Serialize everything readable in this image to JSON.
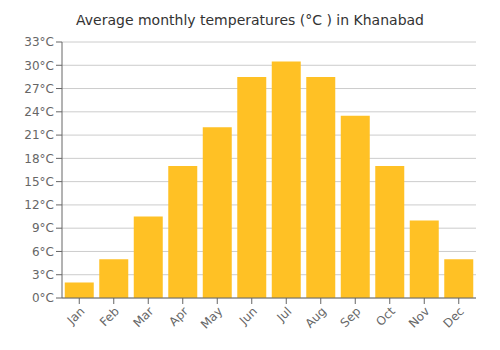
{
  "chart_data": {
    "type": "bar",
    "title": "Average monthly temperatures (°C ) in Khanabad",
    "categories": [
      "Jan",
      "Feb",
      "Mar",
      "Apr",
      "May",
      "Jun",
      "Jul",
      "Aug",
      "Sep",
      "Oct",
      "Nov",
      "Dec"
    ],
    "values": [
      2,
      5,
      10.5,
      17,
      22,
      28.5,
      30.5,
      28.5,
      23.5,
      17,
      10,
      5
    ],
    "color": "#FFC125",
    "ylim": [
      0,
      33
    ],
    "yticks": [
      {
        "value": 0,
        "label": "0°C"
      },
      {
        "value": 3,
        "label": "3°C"
      },
      {
        "value": 6,
        "label": "6°C"
      },
      {
        "value": 9,
        "label": "9°C"
      },
      {
        "value": 12,
        "label": "12°C"
      },
      {
        "value": 15,
        "label": "15°C"
      },
      {
        "value": 18,
        "label": "18°C"
      },
      {
        "value": 21,
        "label": "21°C"
      },
      {
        "value": 24,
        "label": "24°C"
      },
      {
        "value": 27,
        "label": "27°C"
      },
      {
        "value": 30,
        "label": "30°C"
      },
      {
        "value": 33,
        "label": "33°C"
      }
    ],
    "grid": true
  }
}
